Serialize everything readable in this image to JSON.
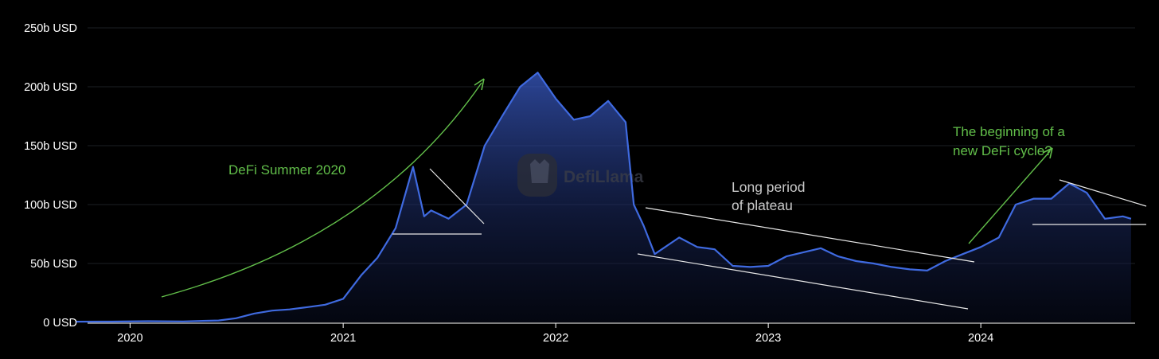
{
  "chart_data": {
    "type": "area",
    "title": "",
    "xlabel": "",
    "ylabel": "",
    "unit": "USD",
    "ylim": [
      0,
      250
    ],
    "y_ticks": [
      "0 USD",
      "50b USD",
      "100b USD",
      "150b USD",
      "200b USD",
      "250b USD"
    ],
    "x_ticks": [
      "2020",
      "2021",
      "2022",
      "2023",
      "2024"
    ],
    "grid": "horizontal",
    "legend": "none",
    "watermark": "DefiLlama",
    "series": [
      {
        "color": "#3f6ae0",
        "points": [
          [
            "2019-10",
            0.6
          ],
          [
            "2019-12",
            0.7
          ],
          [
            "2020-02",
            1.0
          ],
          [
            "2020-04",
            0.8
          ],
          [
            "2020-06",
            1.6
          ],
          [
            "2020-07",
            3.5
          ],
          [
            "2020-08",
            7.5
          ],
          [
            "2020-09",
            10.0
          ],
          [
            "2020-10",
            11.0
          ],
          [
            "2020-11",
            13.0
          ],
          [
            "2020-12",
            15.0
          ],
          [
            "2021-01",
            20.0
          ],
          [
            "2021-02",
            40.0
          ],
          [
            "2021-03",
            55.0
          ],
          [
            "2021-04",
            80.0
          ],
          [
            "2021-05",
            132.0
          ],
          [
            "2021-05-20",
            90.0
          ],
          [
            "2021-06",
            95.0
          ],
          [
            "2021-07",
            88.0
          ],
          [
            "2021-08",
            100.0
          ],
          [
            "2021-09",
            150.0
          ],
          [
            "2021-10",
            175.0
          ],
          [
            "2021-11",
            200.0
          ],
          [
            "2021-12",
            212.0
          ],
          [
            "2022-01",
            190.0
          ],
          [
            "2022-02",
            172.0
          ],
          [
            "2022-03",
            175.0
          ],
          [
            "2022-04",
            188.0
          ],
          [
            "2022-05",
            170.0
          ],
          [
            "2022-05-15",
            100.0
          ],
          [
            "2022-06",
            82.0
          ],
          [
            "2022-06-20",
            58.0
          ],
          [
            "2022-08",
            72.0
          ],
          [
            "2022-09",
            64.0
          ],
          [
            "2022-10",
            62.0
          ],
          [
            "2022-11",
            48.0
          ],
          [
            "2022-12",
            47.0
          ],
          [
            "2023-01",
            48.0
          ],
          [
            "2023-02",
            56.0
          ],
          [
            "2023-04",
            63.0
          ],
          [
            "2023-05",
            56.0
          ],
          [
            "2023-06",
            52.0
          ],
          [
            "2023-07",
            50.0
          ],
          [
            "2023-08",
            47.0
          ],
          [
            "2023-09",
            45.0
          ],
          [
            "2023-10",
            44.0
          ],
          [
            "2023-11",
            52.0
          ],
          [
            "2023-12",
            58.0
          ],
          [
            "2024-01",
            64.0
          ],
          [
            "2024-02",
            72.0
          ],
          [
            "2024-03",
            100.0
          ],
          [
            "2024-04",
            105.0
          ],
          [
            "2024-05",
            105.0
          ],
          [
            "2024-06",
            118.0
          ],
          [
            "2024-07",
            110.0
          ],
          [
            "2024-08",
            88.0
          ],
          [
            "2024-09",
            90.0
          ],
          [
            "2024-09-15",
            88.0
          ]
        ]
      }
    ],
    "annotations": [
      {
        "id": "defi-summer",
        "lines": [
          "DeFi Summer 2020"
        ],
        "color": "#62bf4a"
      },
      {
        "id": "plateau",
        "lines": [
          "Long period",
          "of plateau"
        ],
        "color": "#c9c9c9"
      },
      {
        "id": "new-cycle",
        "lines": [
          "The beginning of a",
          "new DeFi cycle?"
        ],
        "color": "#62bf4a"
      }
    ]
  }
}
